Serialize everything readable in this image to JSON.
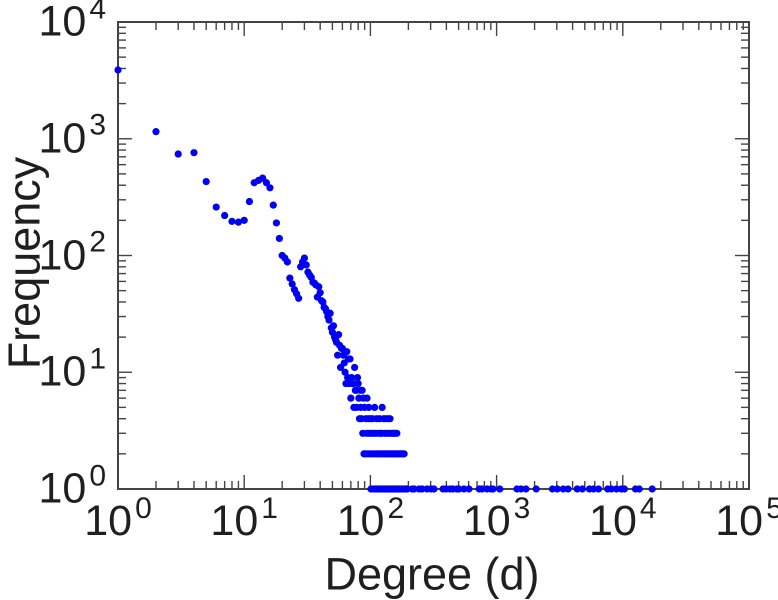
{
  "chart_data": {
    "type": "scatter",
    "title": "",
    "xlabel": "Degree (d)",
    "ylabel": "Frequency",
    "x_scale": "log",
    "y_scale": "log",
    "xlim": [
      1,
      100000
    ],
    "ylim": [
      1,
      10000
    ],
    "x_tick_exponents": [
      0,
      1,
      2,
      3,
      4,
      5
    ],
    "y_tick_exponents": [
      0,
      1,
      2,
      3,
      4
    ],
    "tick_label_base": "10",
    "grid": false,
    "legend_position": "none",
    "marker_color": "#0000f5",
    "axis_color": "#444444",
    "text_color": "#1f1f1f",
    "background_color": "#ffffff",
    "points": [
      [
        1,
        3880
      ],
      [
        2,
        1150
      ],
      [
        3,
        740
      ],
      [
        4,
        760
      ],
      [
        5,
        430
      ],
      [
        6,
        260
      ],
      [
        7,
        220
      ],
      [
        8,
        196
      ],
      [
        9,
        193
      ],
      [
        10,
        200
      ],
      [
        11,
        290
      ],
      [
        12,
        420
      ],
      [
        13,
        440
      ],
      [
        14,
        460
      ],
      [
        15,
        420
      ],
      [
        16,
        380
      ],
      [
        17,
        270
      ],
      [
        18,
        190
      ],
      [
        19,
        140
      ],
      [
        20,
        100
      ],
      [
        21,
        95
      ],
      [
        22,
        88
      ],
      [
        23,
        64
      ],
      [
        24,
        57
      ],
      [
        25,
        51
      ],
      [
        26,
        47
      ],
      [
        27,
        43
      ],
      [
        28,
        80
      ],
      [
        29,
        88
      ],
      [
        30,
        95
      ],
      [
        31,
        83
      ],
      [
        32,
        72
      ],
      [
        33,
        68
      ],
      [
        34,
        65
      ],
      [
        35,
        59
      ],
      [
        36,
        58
      ],
      [
        37,
        56
      ],
      [
        38,
        44
      ],
      [
        39,
        54
      ],
      [
        40,
        48
      ],
      [
        41,
        41
      ],
      [
        42,
        40
      ],
      [
        43,
        36
      ],
      [
        44,
        35
      ],
      [
        45,
        33
      ],
      [
        46,
        30
      ],
      [
        47,
        28
      ],
      [
        48,
        32
      ],
      [
        49,
        24
      ],
      [
        50,
        22
      ],
      [
        51,
        25
      ],
      [
        52,
        20
      ],
      [
        53,
        19
      ],
      [
        54,
        18
      ],
      [
        55,
        14
      ],
      [
        56,
        21
      ],
      [
        57,
        17
      ],
      [
        58,
        11
      ],
      [
        59,
        16
      ],
      [
        60,
        16
      ],
      [
        61,
        14
      ],
      [
        62,
        12
      ],
      [
        63,
        10
      ],
      [
        64,
        8
      ],
      [
        65,
        15
      ],
      [
        66,
        9
      ],
      [
        67,
        13
      ],
      [
        68,
        8
      ],
      [
        69,
        13
      ],
      [
        70,
        6
      ],
      [
        71,
        9
      ],
      [
        72,
        8
      ],
      [
        73,
        8
      ],
      [
        74,
        5
      ],
      [
        75,
        11
      ],
      [
        76,
        7
      ],
      [
        77,
        7
      ],
      [
        78,
        5
      ],
      [
        79,
        9
      ],
      [
        80,
        8
      ],
      [
        81,
        6
      ],
      [
        82,
        4
      ],
      [
        83,
        7
      ],
      [
        84,
        5
      ],
      [
        85,
        4
      ],
      [
        86,
        7
      ],
      [
        87,
        3
      ],
      [
        88,
        6
      ],
      [
        89,
        2
      ],
      [
        90,
        5
      ],
      [
        91,
        2
      ],
      [
        92,
        4
      ],
      [
        93,
        3
      ],
      [
        94,
        6
      ],
      [
        95,
        2
      ],
      [
        96,
        4
      ],
      [
        97,
        5
      ],
      [
        98,
        3
      ],
      [
        99,
        2
      ],
      [
        100,
        4
      ],
      [
        101,
        1
      ],
      [
        102,
        3
      ],
      [
        103,
        2
      ],
      [
        104,
        4
      ],
      [
        105,
        1
      ],
      [
        106,
        3
      ],
      [
        107,
        2
      ],
      [
        108,
        5
      ],
      [
        109,
        1
      ],
      [
        110,
        3
      ],
      [
        111,
        2
      ],
      [
        112,
        4
      ],
      [
        113,
        1
      ],
      [
        114,
        2
      ],
      [
        115,
        3
      ],
      [
        116,
        1
      ],
      [
        117,
        2
      ],
      [
        118,
        4
      ],
      [
        119,
        1
      ],
      [
        120,
        3
      ],
      [
        121,
        2
      ],
      [
        122,
        1
      ],
      [
        123,
        3
      ],
      [
        124,
        5
      ],
      [
        125,
        1
      ],
      [
        126,
        2
      ],
      [
        127,
        4
      ],
      [
        128,
        1
      ],
      [
        129,
        2
      ],
      [
        130,
        3
      ],
      [
        131,
        1
      ],
      [
        132,
        4
      ],
      [
        133,
        2
      ],
      [
        134,
        1
      ],
      [
        135,
        3
      ],
      [
        136,
        2
      ],
      [
        137,
        1
      ],
      [
        138,
        4
      ],
      [
        139,
        1
      ],
      [
        140,
        2
      ],
      [
        141,
        3
      ],
      [
        142,
        1
      ],
      [
        143,
        4
      ],
      [
        144,
        1
      ],
      [
        145,
        2
      ],
      [
        146,
        3
      ],
      [
        147,
        1
      ],
      [
        148,
        2
      ],
      [
        149,
        1
      ],
      [
        150,
        3
      ],
      [
        151,
        1
      ],
      [
        152,
        2
      ],
      [
        153,
        1
      ],
      [
        154,
        3
      ],
      [
        155,
        1
      ],
      [
        156,
        2
      ],
      [
        157,
        3
      ],
      [
        158,
        1
      ],
      [
        159,
        2
      ],
      [
        160,
        1
      ],
      [
        162,
        3
      ],
      [
        163,
        1
      ],
      [
        164,
        2
      ],
      [
        166,
        1
      ],
      [
        168,
        2
      ],
      [
        170,
        1
      ],
      [
        172,
        2
      ],
      [
        174,
        1
      ],
      [
        176,
        2
      ],
      [
        178,
        1
      ],
      [
        180,
        2
      ],
      [
        182,
        1
      ],
      [
        185,
        2
      ],
      [
        188,
        1
      ],
      [
        190,
        1
      ],
      [
        193,
        1
      ],
      [
        196,
        1
      ],
      [
        214,
        1
      ],
      [
        222,
        1
      ],
      [
        243,
        1
      ],
      [
        257,
        1
      ],
      [
        281,
        1
      ],
      [
        302,
        1
      ],
      [
        319,
        1
      ],
      [
        376,
        1
      ],
      [
        398,
        1
      ],
      [
        427,
        1
      ],
      [
        451,
        1
      ],
      [
        485,
        1
      ],
      [
        503,
        1
      ],
      [
        551,
        1
      ],
      [
        604,
        1
      ],
      [
        728,
        1
      ],
      [
        768,
        1
      ],
      [
        840,
        1
      ],
      [
        904,
        1
      ],
      [
        937,
        1
      ],
      [
        1060,
        1
      ],
      [
        1450,
        1
      ],
      [
        1560,
        1
      ],
      [
        1710,
        1
      ],
      [
        2060,
        1
      ],
      [
        2770,
        1
      ],
      [
        3030,
        1
      ],
      [
        3370,
        1
      ],
      [
        3680,
        1
      ],
      [
        4350,
        1
      ],
      [
        4780,
        1
      ],
      [
        5440,
        1
      ],
      [
        5860,
        1
      ],
      [
        6420,
        1
      ],
      [
        7590,
        1
      ],
      [
        8130,
        1
      ],
      [
        8910,
        1
      ],
      [
        9730,
        1
      ],
      [
        10300,
        1
      ],
      [
        12600,
        1
      ],
      [
        13500,
        1
      ],
      [
        17100,
        1
      ]
    ]
  }
}
